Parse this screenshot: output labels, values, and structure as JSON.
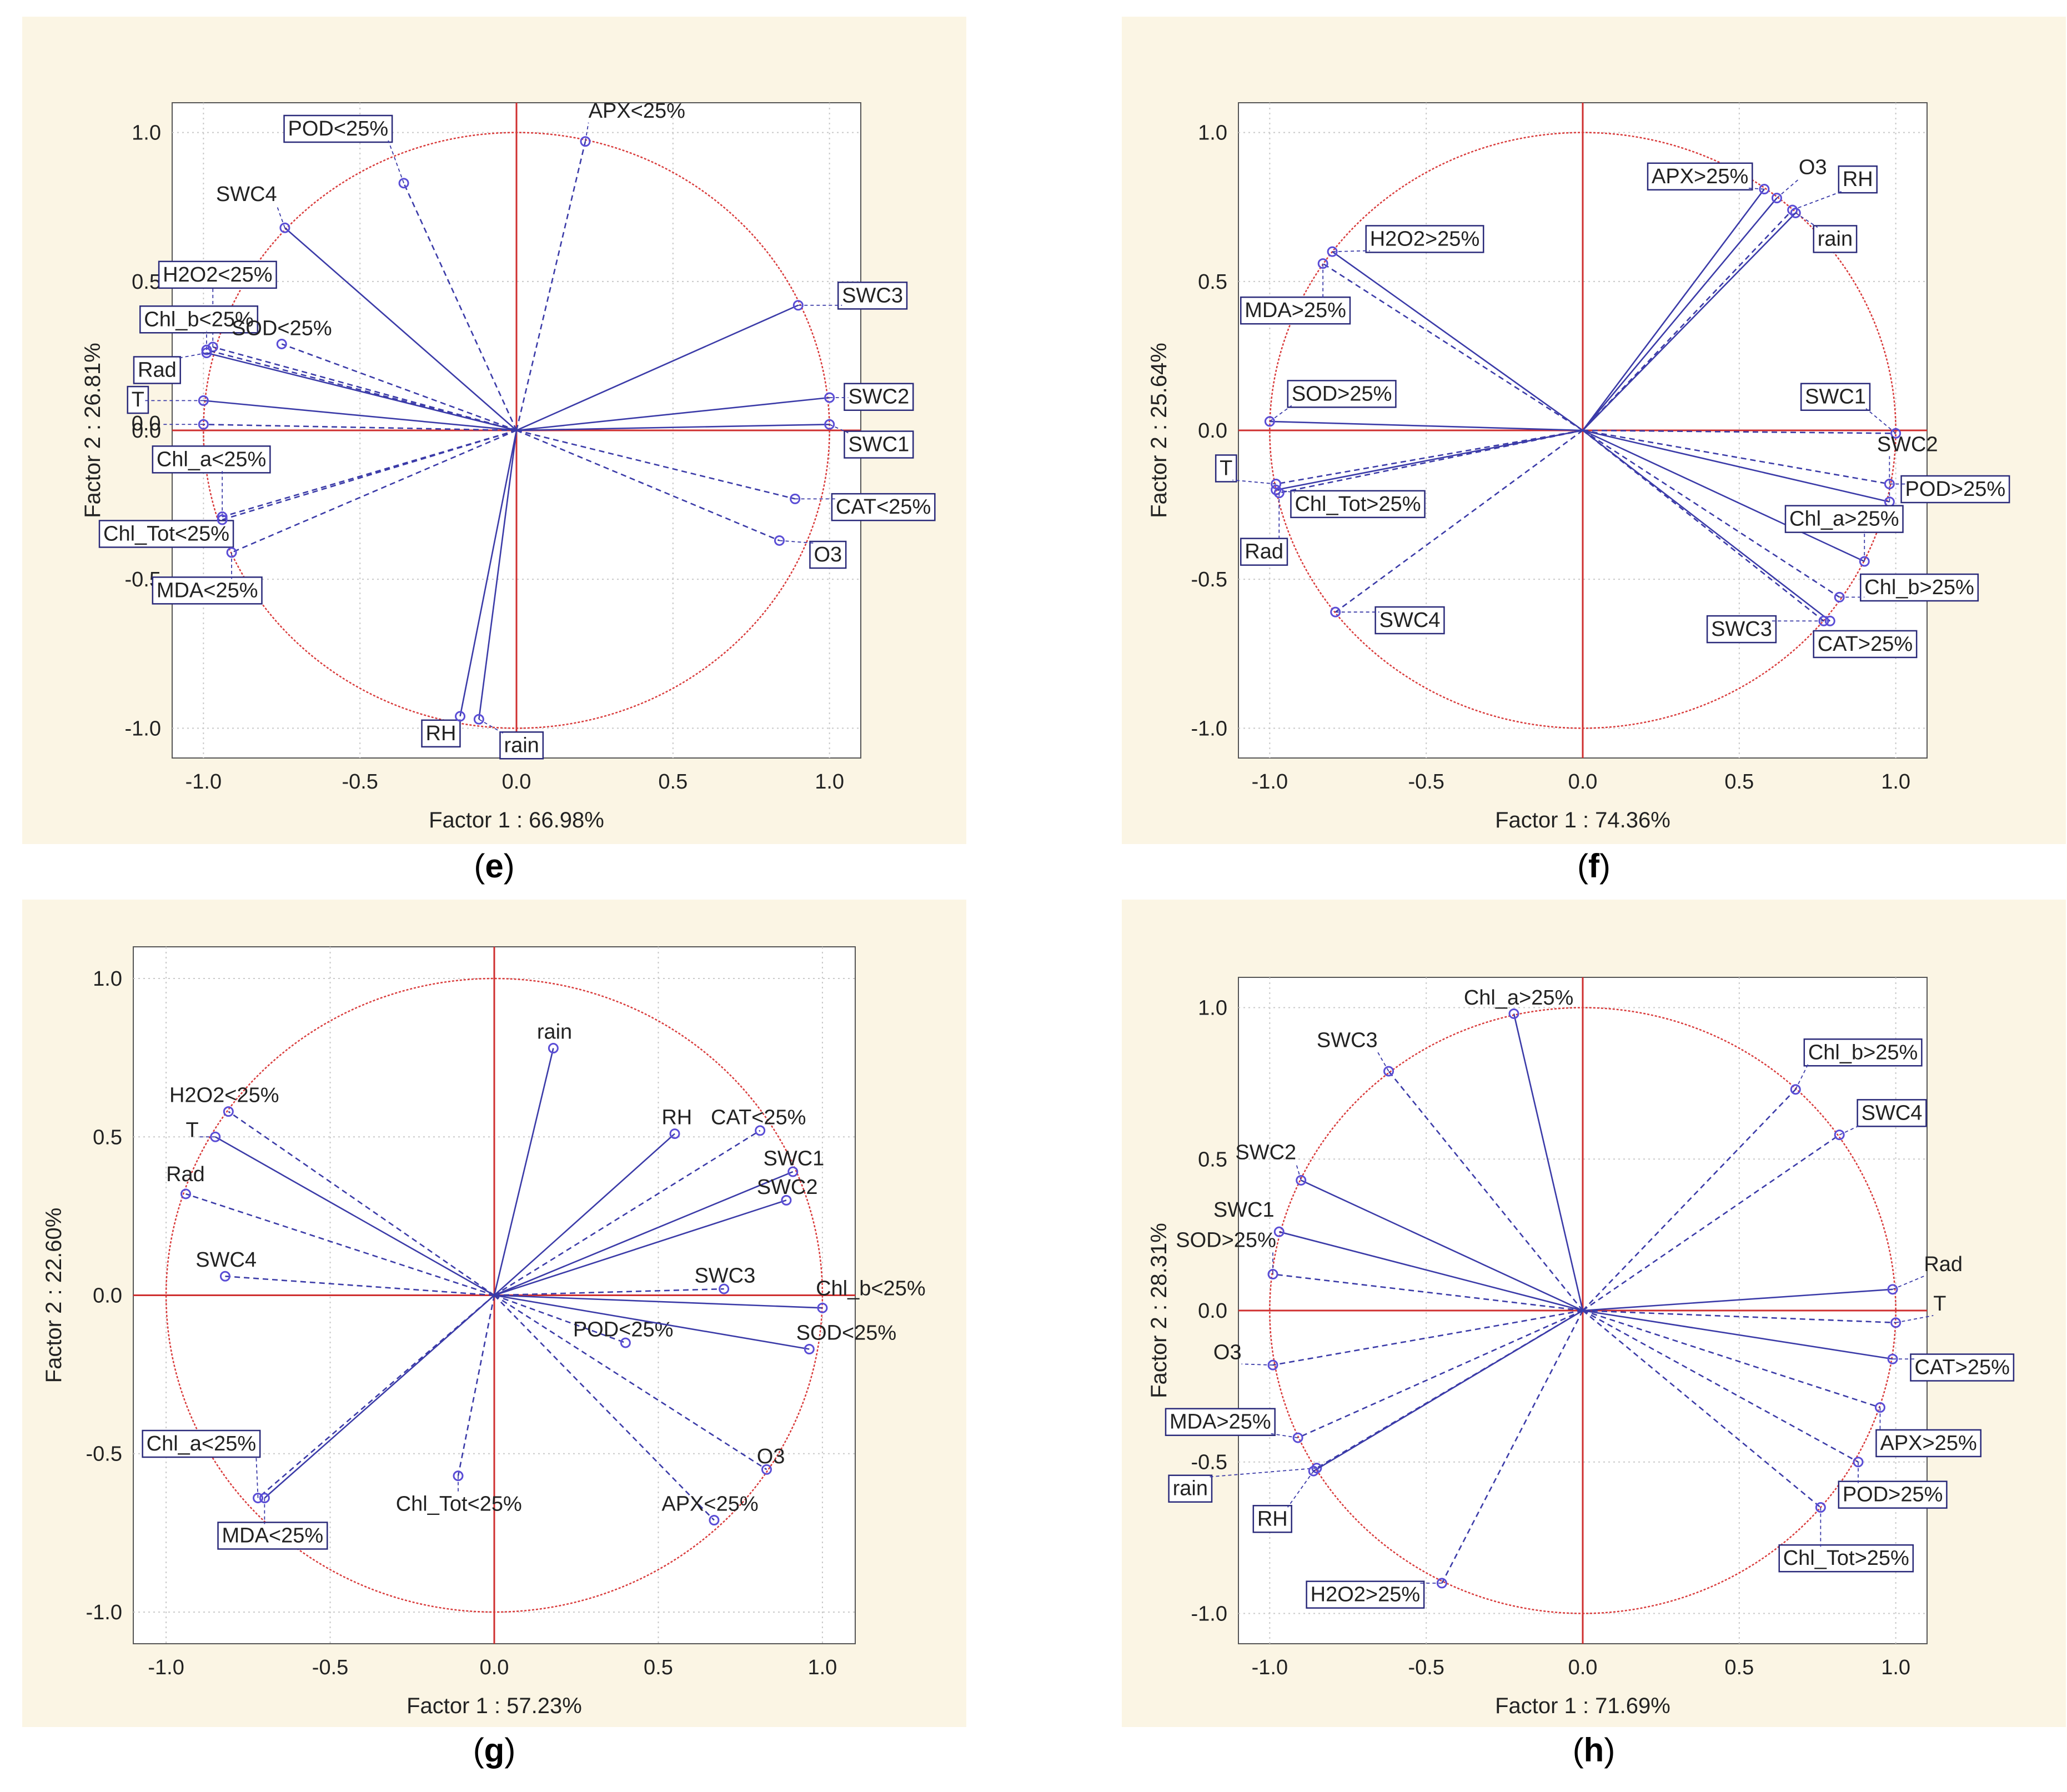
{
  "colors": {
    "background": "#ffffff",
    "panel_background": "#fbf5e4",
    "plot_background": "#ffffff",
    "grid": "#c8c8c8",
    "circle": "#d93b3b",
    "axis_zero": "#cf2f2f",
    "vector": "#3b3ba8",
    "marker": "#5a4dd6",
    "label_box": "#2a2a7a",
    "text": "#222222",
    "panel_letter": "#000000"
  },
  "chart_data": [
    {
      "panel_id": "e",
      "type": "scatter",
      "chart_kind": "PCA correlation circle (variable loadings)",
      "panel_label": "e",
      "xlabel": "Factor 1 : 66.98%",
      "ylabel": "Factor 2 : 26.81%",
      "xlim": [
        -1.1,
        1.1
      ],
      "ylim": [
        -1.1,
        1.1
      ],
      "xticks": [
        "-1.0",
        "-0.5",
        "0.0",
        "0.5",
        "1.0"
      ],
      "yticks": [
        "-1.0",
        "-0.5",
        "0.0",
        "0.5",
        "1.0"
      ],
      "unit_circle": true,
      "grid": true,
      "points": [
        {
          "label": "APX<25%",
          "x": 0.22,
          "y": 0.97,
          "line": "dashed",
          "boxed": false,
          "lx": 0.23,
          "ly": 1.05
        },
        {
          "label": "POD<25%",
          "x": -0.36,
          "y": 0.83,
          "line": "dashed",
          "boxed": true,
          "lx": -0.73,
          "ly": 0.99
        },
        {
          "label": "SWC4",
          "x": -0.74,
          "y": 0.68,
          "line": "solid",
          "boxed": false,
          "lx": -0.96,
          "ly": 0.77
        },
        {
          "label": "H2O2<25%",
          "x": -0.97,
          "y": 0.28,
          "line": "dashed",
          "boxed": true,
          "lx": -1.13,
          "ly": 0.5
        },
        {
          "label": "Chl_b<25%",
          "x": -0.99,
          "y": 0.27,
          "line": "dashed",
          "boxed": true,
          "lx": -1.19,
          "ly": 0.35
        },
        {
          "label": "SOD<25%",
          "x": -0.75,
          "y": 0.29,
          "line": "dashed",
          "boxed": false,
          "lx": -0.91,
          "ly": 0.32
        },
        {
          "label": "Rad",
          "x": -0.99,
          "y": 0.26,
          "line": "solid",
          "boxed": true,
          "lx": -1.21,
          "ly": 0.18
        },
        {
          "label": "T",
          "x": -1.0,
          "y": 0.1,
          "line": "solid",
          "boxed": true,
          "lx": -1.23,
          "ly": 0.08
        },
        {
          "label": "0.0",
          "x": -1.0,
          "y": 0.02,
          "line": "dashed",
          "boxed": false,
          "lx": -1.23,
          "ly": 0.0
        },
        {
          "label": "Chl_a<25%",
          "x": -0.94,
          "y": -0.29,
          "line": "dashed",
          "boxed": true,
          "lx": -1.15,
          "ly": -0.12
        },
        {
          "label": "Chl_Tot<25%",
          "x": -0.94,
          "y": -0.3,
          "line": "dashed",
          "boxed": true,
          "lx": -1.32,
          "ly": -0.37
        },
        {
          "label": "MDA<25%",
          "x": -0.91,
          "y": -0.41,
          "line": "dashed",
          "boxed": true,
          "lx": -1.15,
          "ly": -0.56
        },
        {
          "label": "RH",
          "x": -0.18,
          "y": -0.96,
          "line": "solid",
          "boxed": true,
          "lx": -0.29,
          "ly": -1.04
        },
        {
          "label": "rain",
          "x": -0.12,
          "y": -0.97,
          "line": "solid",
          "boxed": true,
          "lx": -0.04,
          "ly": -1.08
        },
        {
          "label": "SWC3",
          "x": 0.9,
          "y": 0.42,
          "line": "solid",
          "boxed": true,
          "lx": 1.04,
          "ly": 0.43
        },
        {
          "label": "SWC2",
          "x": 1.0,
          "y": 0.11,
          "line": "solid",
          "boxed": true,
          "lx": 1.06,
          "ly": 0.09
        },
        {
          "label": "SWC1",
          "x": 1.0,
          "y": 0.02,
          "line": "solid",
          "boxed": true,
          "lx": 1.06,
          "ly": -0.07
        },
        {
          "label": "CAT<25%",
          "x": 0.89,
          "y": -0.23,
          "line": "dashed",
          "boxed": true,
          "lx": 1.02,
          "ly": -0.28
        },
        {
          "label": "O3",
          "x": 0.84,
          "y": -0.37,
          "line": "dashed",
          "boxed": true,
          "lx": 0.95,
          "ly": -0.44
        }
      ]
    },
    {
      "panel_id": "f",
      "type": "scatter",
      "chart_kind": "PCA correlation circle (variable loadings)",
      "panel_label": "f",
      "xlabel": "Factor 1 : 74.36%",
      "ylabel": "Factor 2 : 25.64%",
      "xlim": [
        -1.1,
        1.1
      ],
      "ylim": [
        -1.1,
        1.1
      ],
      "xticks": [
        "-1.0",
        "-0.5",
        "0.0",
        "0.5",
        "1.0"
      ],
      "yticks": [
        "-1.0",
        "-0.5",
        "0.0",
        "0.5",
        "1.0"
      ],
      "unit_circle": true,
      "grid": true,
      "points": [
        {
          "label": "APX>25%",
          "x": 0.58,
          "y": 0.81,
          "line": "solid",
          "boxed": true,
          "lx": 0.22,
          "ly": 0.83
        },
        {
          "label": "O3",
          "x": 0.62,
          "y": 0.78,
          "line": "solid",
          "boxed": false,
          "lx": 0.69,
          "ly": 0.86
        },
        {
          "label": "RH",
          "x": 0.67,
          "y": 0.74,
          "line": "dashed",
          "boxed": true,
          "lx": 0.83,
          "ly": 0.82
        },
        {
          "label": "rain",
          "x": 0.68,
          "y": 0.73,
          "line": "solid",
          "boxed": true,
          "lx": 0.75,
          "ly": 0.62
        },
        {
          "label": "H2O2>25%",
          "x": -0.8,
          "y": 0.6,
          "line": "solid",
          "boxed": true,
          "lx": -0.68,
          "ly": 0.62
        },
        {
          "label": "MDA>25%",
          "x": -0.83,
          "y": 0.56,
          "line": "dashed",
          "boxed": true,
          "lx": -1.08,
          "ly": 0.38
        },
        {
          "label": "SOD>25%",
          "x": -1.0,
          "y": 0.03,
          "line": "solid",
          "boxed": true,
          "lx": -0.93,
          "ly": 0.1
        },
        {
          "label": "T",
          "x": -0.98,
          "y": -0.18,
          "line": "dashed",
          "boxed": true,
          "lx": -1.16,
          "ly": -0.15
        },
        {
          "label": "Chl_Tot>25%",
          "x": -0.98,
          "y": -0.2,
          "line": "solid",
          "boxed": true,
          "lx": -0.92,
          "ly": -0.27
        },
        {
          "label": "Rad",
          "x": -0.97,
          "y": -0.21,
          "line": "dashed",
          "boxed": true,
          "lx": -1.08,
          "ly": -0.43
        },
        {
          "label": "SWC4",
          "x": -0.79,
          "y": -0.61,
          "line": "dashed",
          "boxed": true,
          "lx": -0.65,
          "ly": -0.66
        },
        {
          "label": "SWC1",
          "x": 1.0,
          "y": -0.01,
          "line": "dashed",
          "boxed": true,
          "lx": 0.71,
          "ly": 0.09
        },
        {
          "label": "SWC2",
          "x": 0.98,
          "y": -0.24,
          "line": "solid",
          "boxed": false,
          "lx": 0.94,
          "ly": -0.07
        },
        {
          "label": "POD>25%",
          "x": 0.98,
          "y": -0.18,
          "line": "dashed",
          "boxed": true,
          "lx": 1.03,
          "ly": -0.22
        },
        {
          "label": "Chl_a>25%",
          "x": 0.9,
          "y": -0.44,
          "line": "solid",
          "boxed": true,
          "lx": 0.66,
          "ly": -0.32
        },
        {
          "label": "Chl_b>25%",
          "x": 0.82,
          "y": -0.56,
          "line": "dashed",
          "boxed": true,
          "lx": 0.9,
          "ly": -0.55
        },
        {
          "label": "SWC3",
          "x": 0.79,
          "y": -0.64,
          "line": "solid",
          "boxed": true,
          "lx": 0.41,
          "ly": -0.69
        },
        {
          "label": "CAT>25%",
          "x": 0.77,
          "y": -0.64,
          "line": "dashed",
          "boxed": true,
          "lx": 0.75,
          "ly": -0.74
        }
      ]
    },
    {
      "panel_id": "g",
      "type": "scatter",
      "chart_kind": "PCA correlation circle (variable loadings)",
      "panel_label": "g",
      "xlabel": "Factor 1 : 57.23%",
      "ylabel": "Factor 2 : 22.60%",
      "xlim": [
        -1.1,
        1.1
      ],
      "ylim": [
        -1.1,
        1.1
      ],
      "xticks": [
        "-1.0",
        "-0.5",
        "0.0",
        "0.5",
        "1.0"
      ],
      "yticks": [
        "-1.0",
        "-0.5",
        "0.0",
        "0.5",
        "1.0"
      ],
      "unit_circle": true,
      "grid": true,
      "points": [
        {
          "label": "rain",
          "x": 0.18,
          "y": 0.78,
          "line": "solid",
          "boxed": false,
          "lx": 0.13,
          "ly": 0.81
        },
        {
          "label": "RH",
          "x": 0.55,
          "y": 0.51,
          "line": "solid",
          "boxed": false,
          "lx": 0.51,
          "ly": 0.54
        },
        {
          "label": "CAT<25%",
          "x": 0.81,
          "y": 0.52,
          "line": "dashed",
          "boxed": false,
          "lx": 0.66,
          "ly": 0.54
        },
        {
          "label": "SWC1",
          "x": 0.91,
          "y": 0.39,
          "line": "solid",
          "boxed": false,
          "lx": 0.82,
          "ly": 0.41
        },
        {
          "label": "SWC2",
          "x": 0.89,
          "y": 0.3,
          "line": "solid",
          "boxed": false,
          "lx": 0.8,
          "ly": 0.32
        },
        {
          "label": "SWC3",
          "x": 0.7,
          "y": 0.02,
          "line": "dashed",
          "boxed": false,
          "lx": 0.61,
          "ly": 0.04
        },
        {
          "label": "Chl_b<25%",
          "x": 1.0,
          "y": -0.04,
          "line": "solid",
          "boxed": false,
          "lx": 0.98,
          "ly": 0.0
        },
        {
          "label": "POD<25%",
          "x": 0.4,
          "y": -0.15,
          "line": "dashed",
          "boxed": false,
          "lx": 0.24,
          "ly": -0.13
        },
        {
          "label": "SOD<25%",
          "x": 0.96,
          "y": -0.17,
          "line": "solid",
          "boxed": false,
          "lx": 0.92,
          "ly": -0.14
        },
        {
          "label": "O3",
          "x": 0.83,
          "y": -0.55,
          "line": "dashed",
          "boxed": false,
          "lx": 0.8,
          "ly": -0.53
        },
        {
          "label": "APX<25%",
          "x": 0.67,
          "y": -0.71,
          "line": "dashed",
          "boxed": false,
          "lx": 0.51,
          "ly": -0.68
        },
        {
          "label": "Chl_Tot<25%",
          "x": -0.11,
          "y": -0.57,
          "line": "dashed",
          "boxed": false,
          "lx": -0.3,
          "ly": -0.68
        },
        {
          "label": "Chl_a<25%",
          "x": -0.72,
          "y": -0.64,
          "line": "dashed",
          "boxed": true,
          "lx": -1.06,
          "ly": -0.49
        },
        {
          "label": "MDA<25%",
          "x": -0.7,
          "y": -0.64,
          "line": "solid",
          "boxed": true,
          "lx": -0.83,
          "ly": -0.78
        },
        {
          "label": "H2O2<25%",
          "x": -0.81,
          "y": 0.58,
          "line": "dashed",
          "boxed": false,
          "lx": -0.99,
          "ly": 0.61
        },
        {
          "label": "T",
          "x": -0.85,
          "y": 0.5,
          "line": "solid",
          "boxed": false,
          "lx": -0.94,
          "ly": 0.5
        },
        {
          "label": "Rad",
          "x": -0.94,
          "y": 0.32,
          "line": "dashed",
          "boxed": false,
          "lx": -1.0,
          "ly": 0.36
        },
        {
          "label": "SWC4",
          "x": -0.82,
          "y": 0.06,
          "line": "dashed",
          "boxed": false,
          "lx": -0.91,
          "ly": 0.09
        }
      ]
    },
    {
      "panel_id": "h",
      "type": "scatter",
      "chart_kind": "PCA correlation circle (variable loadings)",
      "panel_label": "h",
      "xlabel": "Factor 1 : 71.69%",
      "ylabel": "Factor 2 : 28.31%",
      "xlim": [
        -1.1,
        1.1
      ],
      "ylim": [
        -1.1,
        1.1
      ],
      "xticks": [
        "-1.0",
        "-0.5",
        "0.0",
        "0.5",
        "1.0"
      ],
      "yticks": [
        "-1.0",
        "-0.5",
        "0.0",
        "0.5",
        "1.0"
      ],
      "unit_circle": true,
      "grid": true,
      "points": [
        {
          "label": "Chl_a>25%",
          "x": -0.22,
          "y": 0.98,
          "line": "solid",
          "boxed": false,
          "lx": -0.38,
          "ly": 1.01
        },
        {
          "label": "SWC3",
          "x": -0.62,
          "y": 0.79,
          "line": "dashed",
          "boxed": false,
          "lx": -0.85,
          "ly": 0.87
        },
        {
          "label": "SWC2",
          "x": -0.9,
          "y": 0.43,
          "line": "solid",
          "boxed": false,
          "lx": -1.11,
          "ly": 0.5
        },
        {
          "label": "SWC1",
          "x": -0.97,
          "y": 0.26,
          "line": "solid",
          "boxed": false,
          "lx": -1.18,
          "ly": 0.31
        },
        {
          "label": "SOD>25%",
          "x": -0.99,
          "y": 0.12,
          "line": "dashed",
          "boxed": false,
          "lx": -1.3,
          "ly": 0.21
        },
        {
          "label": "O3",
          "x": -0.99,
          "y": -0.18,
          "line": "dashed",
          "boxed": false,
          "lx": -1.18,
          "ly": -0.16
        },
        {
          "label": "MDA>25%",
          "x": -0.91,
          "y": -0.42,
          "line": "dashed",
          "boxed": true,
          "lx": -1.32,
          "ly": -0.39
        },
        {
          "label": "rain",
          "x": -0.85,
          "y": -0.52,
          "line": "dashed",
          "boxed": true,
          "lx": -1.31,
          "ly": -0.61
        },
        {
          "label": "RH",
          "x": -0.86,
          "y": -0.53,
          "line": "solid",
          "boxed": true,
          "lx": -1.04,
          "ly": -0.71
        },
        {
          "label": "H2O2>25%",
          "x": -0.45,
          "y": -0.9,
          "line": "dashed",
          "boxed": true,
          "lx": -0.87,
          "ly": -0.96
        },
        {
          "label": "Chl_b>25%",
          "x": 0.68,
          "y": 0.73,
          "line": "dashed",
          "boxed": true,
          "lx": 0.72,
          "ly": 0.83
        },
        {
          "label": "SWC4",
          "x": 0.82,
          "y": 0.58,
          "line": "dashed",
          "boxed": true,
          "lx": 0.89,
          "ly": 0.63
        },
        {
          "label": "Rad",
          "x": 0.99,
          "y": 0.07,
          "line": "solid",
          "boxed": false,
          "lx": 1.09,
          "ly": 0.13
        },
        {
          "label": "T",
          "x": 1.0,
          "y": -0.04,
          "line": "dashed",
          "boxed": false,
          "lx": 1.12,
          "ly": 0.0
        },
        {
          "label": "CAT>25%",
          "x": 0.99,
          "y": -0.16,
          "line": "solid",
          "boxed": true,
          "lx": 1.06,
          "ly": -0.21
        },
        {
          "label": "APX>25%",
          "x": 0.95,
          "y": -0.32,
          "line": "dashed",
          "boxed": true,
          "lx": 0.95,
          "ly": -0.46
        },
        {
          "label": "POD>25%",
          "x": 0.88,
          "y": -0.5,
          "line": "dashed",
          "boxed": true,
          "lx": 0.83,
          "ly": -0.63
        },
        {
          "label": "Chl_Tot>25%",
          "x": 0.76,
          "y": -0.65,
          "line": "dashed",
          "boxed": true,
          "lx": 0.64,
          "ly": -0.84
        }
      ]
    }
  ]
}
